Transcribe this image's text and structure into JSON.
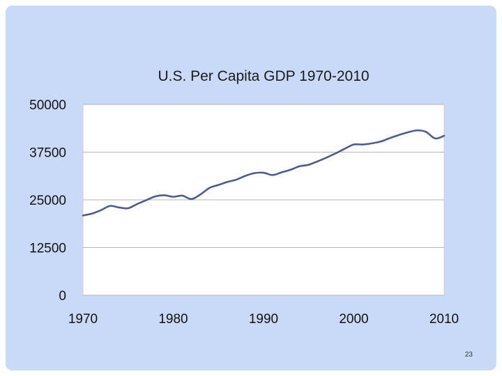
{
  "slide": {
    "background": "#c9d9f8",
    "page_number": "23"
  },
  "chart_data": {
    "type": "line",
    "title": "U.S. Per Capita GDP 1970-2010",
    "xlabel": "",
    "ylabel": "",
    "xlim": [
      1970,
      2010
    ],
    "ylim": [
      0,
      50000
    ],
    "x_ticks": [
      "1970",
      "1980",
      "1990",
      "2000",
      "2010"
    ],
    "y_ticks": [
      "50000",
      "37500",
      "25000",
      "12500",
      "0"
    ],
    "grid": "horizontal",
    "legend": "none",
    "line_color": "#4a5d8c",
    "plot_background": "#ffffff",
    "x": [
      1970,
      1971,
      1972,
      1973,
      1974,
      1975,
      1976,
      1977,
      1978,
      1979,
      1980,
      1981,
      1982,
      1983,
      1984,
      1985,
      1986,
      1987,
      1988,
      1989,
      1990,
      1991,
      1992,
      1993,
      1994,
      1995,
      1996,
      1997,
      1998,
      1999,
      2000,
      2001,
      2002,
      2003,
      2004,
      2005,
      2006,
      2007,
      2008,
      2009,
      2010
    ],
    "series": [
      {
        "values": [
          20900,
          21400,
          22300,
          23400,
          23000,
          22800,
          23900,
          24900,
          25900,
          26200,
          25800,
          26100,
          25200,
          26400,
          28100,
          28900,
          29700,
          30300,
          31300,
          32000,
          32100,
          31500,
          32200,
          32900,
          33800,
          34200,
          35100,
          36100,
          37200,
          38400,
          39500,
          39500,
          39800,
          40300,
          41200,
          42000,
          42700,
          43200,
          42800,
          41100,
          41800
        ]
      }
    ]
  }
}
